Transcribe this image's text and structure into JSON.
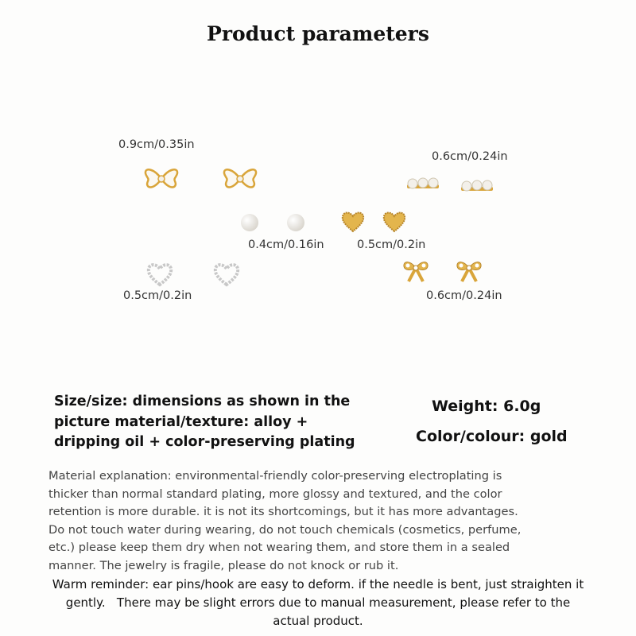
{
  "title": "Product parameters",
  "sizes": {
    "white_bow": "0.9cm/0.35in",
    "pearl_bar": "0.6cm/0.24in",
    "pearl_stud": "0.4cm/0.16in",
    "gold_heart": "0.5cm/0.2in",
    "silver_heart": "0.5cm/0.2in",
    "gold_bow": "0.6cm/0.24in"
  },
  "specs": {
    "size_lines": [
      "Size/size: dimensions as shown in the",
      "picture material/texture: alloy +",
      "dripping oil + color-preserving plating"
    ],
    "weight": "Weight: 6.0g",
    "color": "Color/colour: gold"
  },
  "material_lines": [
    "Material explanation: environmental-friendly color-preserving electroplating is",
    "thicker than normal standard plating, more glossy and textured, and the color",
    "retention is more durable. it is not its shortcomings, but it has more advantages.",
    "Do not touch water during wearing, do not touch chemicals (cosmetics, perfume,",
    "etc.) please keep them dry when not wearing them, and store them in a sealed",
    "manner. The jewelry is fragile, please do not knock or rub it."
  ],
  "warm_lines": [
    "Warm reminder: ear pins/hook are easy to deform. if the needle is bent, just straighten it",
    "gently.   There may be slight errors due to manual measurement, please refer to the",
    "actual product."
  ],
  "colors": {
    "gold": "#d9a53a",
    "silver": "#c8c8c8",
    "pearl": "#f3f0ea",
    "enamel": "#fbf8f1"
  }
}
